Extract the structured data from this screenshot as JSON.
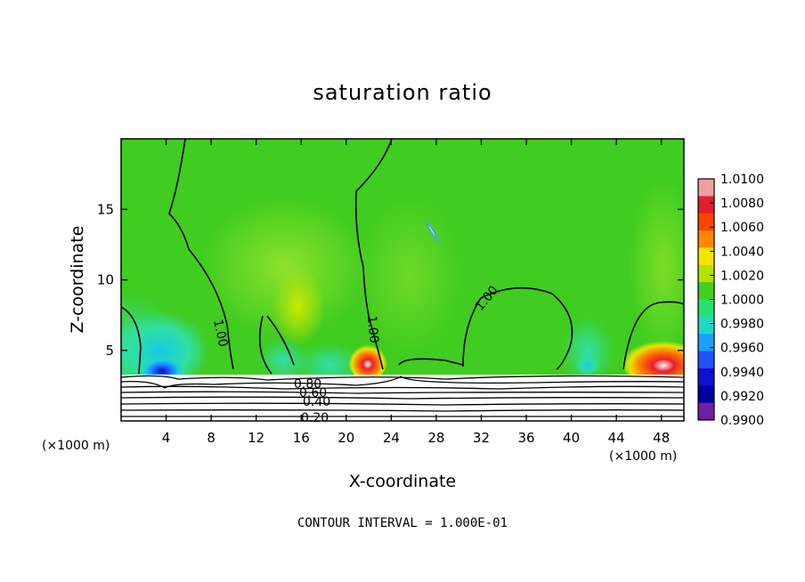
{
  "chart_data": {
    "type": "heatmap",
    "title": "saturation ratio",
    "xlabel": "X-coordinate",
    "ylabel": "Z-coordinate",
    "x_unit_left": "(×1000 m)",
    "x_unit_right": "(×1000 m)",
    "xlim": [
      0,
      50
    ],
    "ylim": [
      0,
      20
    ],
    "xticks": [
      4,
      8,
      12,
      16,
      20,
      24,
      28,
      32,
      36,
      40,
      44,
      48
    ],
    "yticks": [
      5,
      10,
      15
    ],
    "colorbar": {
      "labels": [
        "1.0100",
        "1.0080",
        "1.0060",
        "1.0040",
        "1.0020",
        "1.0000",
        "0.9980",
        "0.9960",
        "0.9940",
        "0.9920",
        "0.9900"
      ],
      "colors": [
        "#f0a0a0",
        "#e0202a",
        "#ff4400",
        "#ff8800",
        "#f2e600",
        "#b4e200",
        "#40d020",
        "#28e070",
        "#20d8c8",
        "#1aa0ff",
        "#2050ff",
        "#1010d0",
        "#0000a0",
        "#7020a0"
      ]
    },
    "contour_labels": [
      "1.00",
      "1.00",
      "1.00",
      "0.80",
      "0.60",
      "0.40",
      "0.20"
    ],
    "footer": "CONTOUR INTERVAL = 1.000E-01"
  }
}
